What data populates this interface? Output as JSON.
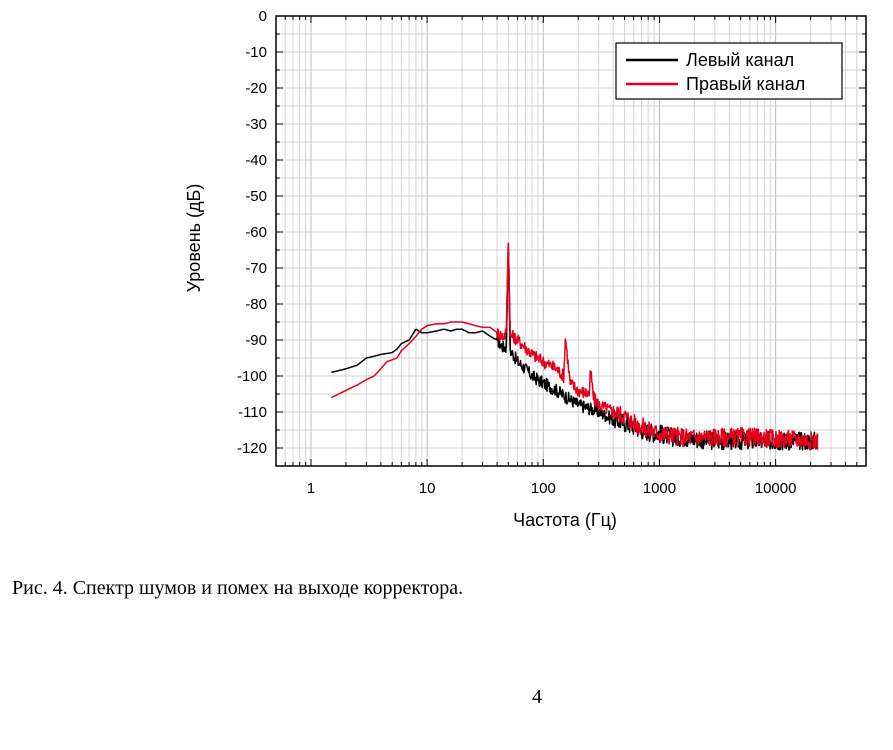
{
  "chart_data": {
    "type": "line",
    "xlabel": "Частота (Гц)",
    "ylabel": "Уровень (дБ)",
    "xscale": "log",
    "xlim": [
      0.5,
      60000
    ],
    "ylim": [
      -125,
      0
    ],
    "xticks": [
      {
        "value": 1,
        "label": "1"
      },
      {
        "value": 10,
        "label": "10"
      },
      {
        "value": 100,
        "label": "100"
      },
      {
        "value": 1000,
        "label": "1000"
      },
      {
        "value": 10000,
        "label": "10000"
      }
    ],
    "yticks": [
      {
        "value": 0,
        "label": "0"
      },
      {
        "value": -10,
        "label": "-10"
      },
      {
        "value": -20,
        "label": "-20"
      },
      {
        "value": -30,
        "label": "-30"
      },
      {
        "value": -40,
        "label": "-40"
      },
      {
        "value": -50,
        "label": "-50"
      },
      {
        "value": -60,
        "label": "-60"
      },
      {
        "value": -70,
        "label": "-70"
      },
      {
        "value": -80,
        "label": "-80"
      },
      {
        "value": -90,
        "label": "-90"
      },
      {
        "value": -100,
        "label": "-100"
      },
      {
        "value": -110,
        "label": "-110"
      },
      {
        "value": -120,
        "label": "-120"
      }
    ],
    "grid": true,
    "legend_position": "top-right",
    "series": [
      {
        "name": "Левый канал",
        "color": "#000000",
        "x": [
          1.5,
          2,
          2.5,
          3,
          3.5,
          4,
          5,
          5.5,
          6,
          7,
          8,
          9,
          10,
          12,
          14,
          16,
          18,
          20,
          23,
          26,
          30,
          35,
          40,
          45,
          48,
          50,
          52,
          55,
          60,
          70,
          80,
          100,
          130,
          160,
          200,
          250,
          300,
          400,
          500,
          600,
          700,
          800,
          1000,
          1300,
          1600,
          2000,
          3000,
          4000,
          5000,
          7000,
          10000,
          15000,
          20000,
          23000
        ],
        "y": [
          -99,
          -98,
          -97,
          -95,
          -94.5,
          -94,
          -93.5,
          -92.5,
          -91,
          -90,
          -87,
          -88,
          -88,
          -87.5,
          -87,
          -87.5,
          -87,
          -87,
          -88,
          -88,
          -87.5,
          -89,
          -90,
          -92,
          -92,
          -63,
          -93,
          -94,
          -96,
          -98,
          -100,
          -102,
          -104,
          -106,
          -108,
          -109,
          -110,
          -112,
          -113,
          -114,
          -115,
          -115.5,
          -116,
          -117,
          -117,
          -117.5,
          -118,
          -118,
          -118,
          -118,
          -118,
          -118,
          -118,
          -118
        ]
      },
      {
        "name": "Правый канал",
        "color": "#e3001b",
        "x": [
          1.5,
          2,
          2.5,
          3,
          3.5,
          4,
          4.5,
          5,
          5.5,
          6,
          6.5,
          7,
          8,
          9,
          10,
          12,
          14,
          16,
          18,
          20,
          23,
          26,
          30,
          35,
          40,
          45,
          48,
          50,
          52,
          55,
          60,
          70,
          80,
          100,
          130,
          150,
          155,
          170,
          200,
          250,
          255,
          270,
          300,
          350,
          400,
          500,
          600,
          700,
          800,
          1000,
          1300,
          1600,
          2000,
          3000,
          4000,
          5000,
          7000,
          10000,
          15000,
          20000,
          23000
        ],
        "y": [
          -106,
          -104,
          -102.5,
          -101,
          -100,
          -98,
          -96,
          -95.5,
          -95,
          -93,
          -92,
          -91,
          -89,
          -87,
          -86,
          -85.5,
          -85.5,
          -85,
          -85,
          -85,
          -85.5,
          -86,
          -86.5,
          -86.5,
          -88,
          -89,
          -88,
          -63,
          -89,
          -89,
          -90,
          -92,
          -94,
          -96,
          -98,
          -100,
          -89,
          -102,
          -104,
          -105,
          -98,
          -106,
          -108,
          -109,
          -110,
          -111,
          -113,
          -114,
          -115,
          -116,
          -116.5,
          -117,
          -117,
          -117,
          -117,
          -117,
          -117,
          -117.5,
          -117.5,
          -118,
          -118
        ]
      }
    ]
  },
  "caption": "Рис. 4. Спектр шумов и помех на выходе корректора.",
  "page_number": "4"
}
